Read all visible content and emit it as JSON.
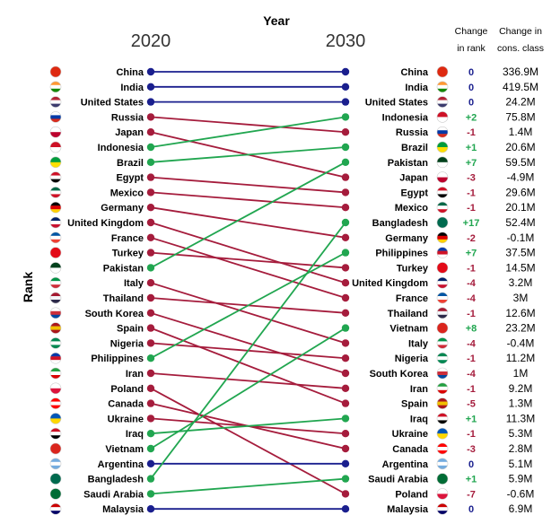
{
  "chart_data": {
    "type": "slope",
    "title": "Year",
    "ylabel": "Rank",
    "x": [
      "2020",
      "2030"
    ],
    "change_header": [
      "Change",
      "in rank"
    ],
    "cons_header": [
      "Change in",
      "cons. class"
    ],
    "left": [
      "China",
      "India",
      "United States",
      "Russia",
      "Japan",
      "Indonesia",
      "Brazil",
      "Egypt",
      "Mexico",
      "Germany",
      "United Kingdom",
      "France",
      "Turkey",
      "Pakistan",
      "Italy",
      "Thailand",
      "South Korea",
      "Spain",
      "Nigeria",
      "Philippines",
      "Iran",
      "Poland",
      "Canada",
      "Ukraine",
      "Iraq",
      "Vietnam",
      "Argentina",
      "Bangladesh",
      "Saudi Arabia",
      "Malaysia"
    ],
    "right": [
      "China",
      "India",
      "United States",
      "Indonesia",
      "Russia",
      "Brazil",
      "Pakistan",
      "Japan",
      "Egypt",
      "Mexico",
      "Bangladesh",
      "Germany",
      "Philippines",
      "Turkey",
      "United Kingdom",
      "France",
      "Thailand",
      "Vietnam",
      "Italy",
      "Nigeria",
      "South Korea",
      "Iran",
      "Spain",
      "Iraq",
      "Ukraine",
      "Canada",
      "Argentina",
      "Saudi Arabia",
      "Poland",
      "Malaysia"
    ],
    "rank_change": [
      "0",
      "0",
      "0",
      "+2",
      "-1",
      "+1",
      "+7",
      "-3",
      "-1",
      "-1",
      "+17",
      "-2",
      "+7",
      "-1",
      "-4",
      "-4",
      "-1",
      "+8",
      "-4",
      "-1",
      "-4",
      "-1",
      "-5",
      "+1",
      "-1",
      "-3",
      "0",
      "+1",
      "-7",
      "0"
    ],
    "cons_change": [
      "336.9M",
      "419.5M",
      "24.2M",
      "75.8M",
      "1.4M",
      "20.6M",
      "59.5M",
      "-4.9M",
      "29.6M",
      "20.1M",
      "52.4M",
      "-0.1M",
      "37.5M",
      "14.5M",
      "3.2M",
      "3M",
      "12.6M",
      "23.2M",
      "-0.4M",
      "11.2M",
      "1M",
      "9.2M",
      "1.3M",
      "11.3M",
      "5.3M",
      "2.8M",
      "5.1M",
      "5.9M",
      "-0.6M",
      "6.9M"
    ]
  },
  "colors": {
    "up": "#21a650",
    "down": "#a51c3c",
    "same": "#1a1f8e"
  },
  "flags": {
    "China": [
      "#de2910"
    ],
    "India": [
      "#ff9933",
      "#ffffff",
      "#138808"
    ],
    "United States": [
      "#b22234",
      "#ffffff",
      "#3c3b6e"
    ],
    "Russia": [
      "#ffffff",
      "#0039a6",
      "#d52b1e"
    ],
    "Japan": [
      "#ffffff",
      "#bc002d"
    ],
    "Indonesia": [
      "#ce1126",
      "#ffffff"
    ],
    "Brazil": [
      "#009c3b",
      "#ffdf00"
    ],
    "Egypt": [
      "#ce1126",
      "#ffffff",
      "#000000"
    ],
    "Mexico": [
      "#006847",
      "#ffffff",
      "#ce1126"
    ],
    "Germany": [
      "#000000",
      "#dd0000",
      "#ffce00"
    ],
    "United Kingdom": [
      "#012169",
      "#ffffff",
      "#c8102e"
    ],
    "France": [
      "#0055a4",
      "#ffffff",
      "#ef4135"
    ],
    "Turkey": [
      "#e30a17"
    ],
    "Pakistan": [
      "#01411c",
      "#ffffff"
    ],
    "Italy": [
      "#009246",
      "#ffffff",
      "#ce2b37"
    ],
    "Thailand": [
      "#a51931",
      "#f4f5f8",
      "#2d2a4a"
    ],
    "South Korea": [
      "#ffffff",
      "#cd2e3a",
      "#0047a0"
    ],
    "Spain": [
      "#aa151b",
      "#f1bf00",
      "#aa151b"
    ],
    "Nigeria": [
      "#008751",
      "#ffffff",
      "#008751"
    ],
    "Philippines": [
      "#0038a8",
      "#ce1126",
      "#ffffff"
    ],
    "Iran": [
      "#239f40",
      "#ffffff",
      "#da0000"
    ],
    "Poland": [
      "#ffffff",
      "#dc143c"
    ],
    "Canada": [
      "#ff0000",
      "#ffffff",
      "#ff0000"
    ],
    "Ukraine": [
      "#0057b7",
      "#ffd700"
    ],
    "Iraq": [
      "#ce1126",
      "#ffffff",
      "#000000"
    ],
    "Vietnam": [
      "#da251d"
    ],
    "Argentina": [
      "#74acdf",
      "#ffffff",
      "#74acdf"
    ],
    "Bangladesh": [
      "#006a4e"
    ],
    "Saudi Arabia": [
      "#006c35"
    ],
    "Malaysia": [
      "#cc0001",
      "#ffffff",
      "#010066"
    ]
  }
}
